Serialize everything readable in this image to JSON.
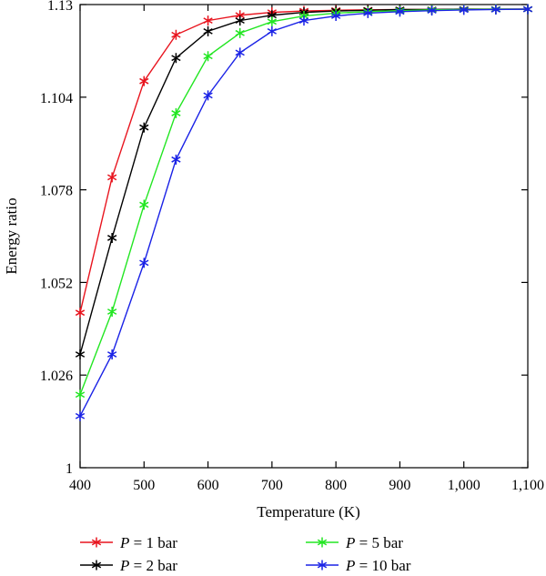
{
  "chart_data": {
    "type": "line",
    "xlabel": "Temperature (K)",
    "ylabel": "Energy ratio",
    "xlim": [
      400,
      1100
    ],
    "ylim": [
      1.0,
      1.13
    ],
    "x_ticks": [
      400,
      500,
      600,
      700,
      800,
      900,
      1000,
      1100
    ],
    "x_tick_labels": [
      "400",
      "500",
      "600",
      "700",
      "800",
      "900",
      "1,000",
      "1,100"
    ],
    "y_ticks": [
      1.0,
      1.026,
      1.052,
      1.078,
      1.104,
      1.13
    ],
    "y_tick_labels": [
      "1",
      "1.026",
      "1.052",
      "1.078",
      "1.104",
      "1.13"
    ],
    "grid": false,
    "legend_position": "bottom",
    "x": [
      400,
      450,
      500,
      550,
      600,
      650,
      700,
      750,
      800,
      850,
      900,
      950,
      1000,
      1050,
      1100
    ],
    "series": [
      {
        "name_prefix": "P",
        "name_suffix": " = 1 bar",
        "color": "#e8141e",
        "values": [
          1.0435,
          1.0815,
          1.1085,
          1.1215,
          1.1255,
          1.127,
          1.1278,
          1.1282,
          1.1284,
          1.1285,
          1.1286,
          1.1286,
          1.1287,
          1.1287,
          1.1287
        ]
      },
      {
        "name_prefix": "P",
        "name_suffix": " = 2 bar",
        "color": "#000000",
        "values": [
          1.0318,
          1.0645,
          1.0955,
          1.115,
          1.1225,
          1.1255,
          1.127,
          1.1278,
          1.1282,
          1.1284,
          1.1286,
          1.1286,
          1.1287,
          1.1287,
          1.1287
        ]
      },
      {
        "name_prefix": "P",
        "name_suffix": " = 5 bar",
        "color": "#22e622",
        "values": [
          1.0205,
          1.0438,
          1.0738,
          1.0995,
          1.1155,
          1.122,
          1.1252,
          1.1268,
          1.1276,
          1.128,
          1.1283,
          1.1285,
          1.1286,
          1.1287,
          1.1287
        ]
      },
      {
        "name_prefix": "P",
        "name_suffix": " = 10 bar",
        "color": "#1a22e6",
        "values": [
          1.0145,
          1.0318,
          1.0575,
          1.0865,
          1.1045,
          1.1165,
          1.1225,
          1.1255,
          1.1268,
          1.1276,
          1.128,
          1.1283,
          1.1285,
          1.1286,
          1.1287
        ]
      }
    ]
  }
}
